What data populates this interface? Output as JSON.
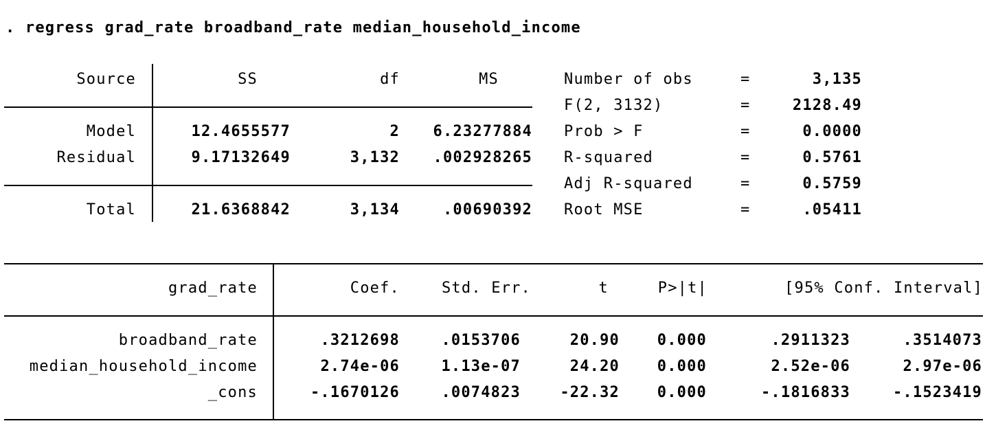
{
  "command": ". regress grad_rate broadband_rate median_household_income",
  "anova": {
    "headers": {
      "source": "Source",
      "ss": "SS",
      "df": "df",
      "ms": "MS"
    },
    "rows": [
      {
        "source": "Model",
        "ss": "12.4655577",
        "df": "2",
        "ms": "6.23277884"
      },
      {
        "source": "Residual",
        "ss": "9.17132649",
        "df": "3,132",
        "ms": ".002928265"
      },
      {
        "source": "Total",
        "ss": "21.6368842",
        "df": "3,134",
        "ms": ".00690392"
      }
    ]
  },
  "stats": [
    {
      "label": "Number of obs",
      "eq": "=",
      "value": "3,135"
    },
    {
      "label": "F(2, 3132)",
      "eq": "=",
      "value": "2128.49"
    },
    {
      "label": "Prob > F",
      "eq": "=",
      "value": "0.0000"
    },
    {
      "label": "R-squared",
      "eq": "=",
      "value": "0.5761"
    },
    {
      "label": "Adj R-squared",
      "eq": "=",
      "value": "0.5759"
    },
    {
      "label": "Root MSE",
      "eq": "=",
      "value": ".05411"
    }
  ],
  "coef_table": {
    "headers": {
      "var": "grad_rate",
      "coef": "Coef.",
      "se": "Std. Err.",
      "t": "t",
      "p": "P>|t|",
      "ci": "[95% Conf. Interval]"
    },
    "rows": [
      {
        "var": "broadband_rate",
        "coef": ".3212698",
        "se": ".0153706",
        "t": "20.90",
        "p": "0.000",
        "lo": ".2911323",
        "hi": ".3514073"
      },
      {
        "var": "median_household_income",
        "coef": "2.74e-06",
        "se": "1.13e-07",
        "t": "24.20",
        "p": "0.000",
        "lo": "2.52e-06",
        "hi": "2.97e-06"
      },
      {
        "var": "_cons",
        "coef": "-.1670126",
        "se": ".0074823",
        "t": "-22.32",
        "p": "0.000",
        "lo": "-.1816833",
        "hi": "-.1523419"
      }
    ]
  }
}
